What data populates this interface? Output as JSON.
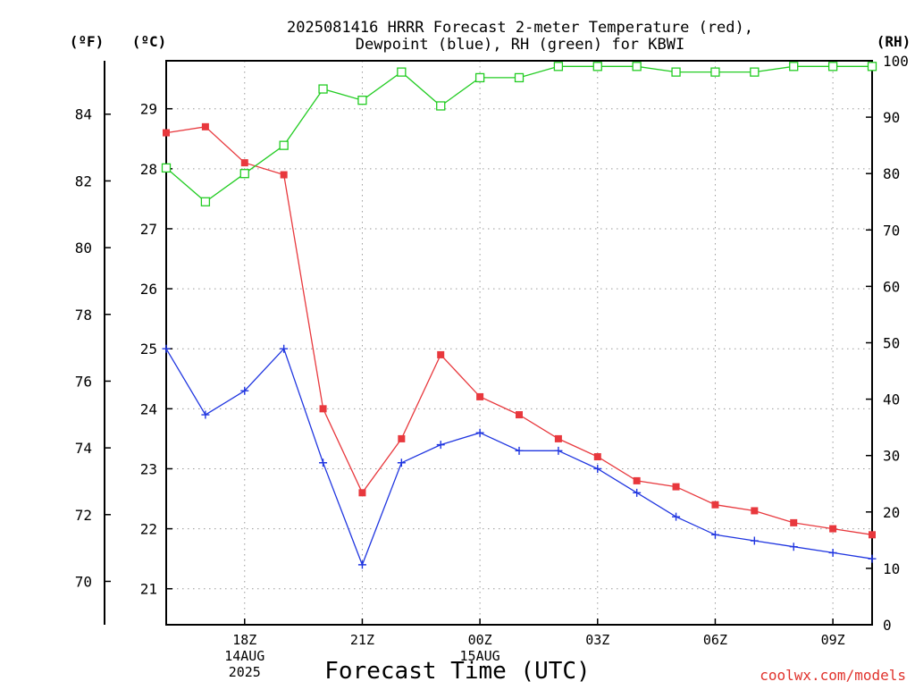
{
  "chart_data": {
    "type": "line",
    "title_lines": [
      "2025081416 HRRR Forecast 2-meter Temperature (red),",
      "Dewpoint (blue), RH (green) for KBWI"
    ],
    "xlabel": "Forecast Time (UTC)",
    "credit": "coolwx.com/models",
    "axis_units": {
      "fahrenheit": "(ºF)",
      "celsius": "(ºC)",
      "rh": "(RH)"
    },
    "x_hours": [
      16,
      17,
      18,
      19,
      20,
      21,
      22,
      23,
      24,
      25,
      26,
      27,
      28,
      29,
      30,
      31,
      32,
      33,
      34
    ],
    "xlim": [
      16,
      34
    ],
    "x_ticks": [
      {
        "hour": 18,
        "lines": [
          "18Z",
          "14AUG",
          "2025"
        ]
      },
      {
        "hour": 21,
        "lines": [
          "21Z"
        ]
      },
      {
        "hour": 24,
        "lines": [
          "00Z",
          "15AUG"
        ]
      },
      {
        "hour": 27,
        "lines": [
          "03Z"
        ]
      },
      {
        "hour": 30,
        "lines": [
          "06Z"
        ]
      },
      {
        "hour": 33,
        "lines": [
          "09Z"
        ]
      }
    ],
    "ylim_celsius": [
      20.4,
      29.8
    ],
    "y_ticks_celsius": [
      21,
      22,
      23,
      24,
      25,
      26,
      27,
      28,
      29
    ],
    "ylim_fahrenheit": [
      68.7,
      85.6
    ],
    "y_ticks_fahrenheit": [
      70,
      72,
      74,
      76,
      78,
      80,
      82,
      84
    ],
    "ylim_rh": [
      0,
      100
    ],
    "y_ticks_rh": [
      0,
      10,
      20,
      30,
      40,
      50,
      60,
      70,
      80,
      90,
      100
    ],
    "grid": true,
    "series": [
      {
        "key": "temperature",
        "axis": "celsius",
        "color": "#e8383d",
        "marker": "filled-square",
        "values": [
          28.6,
          28.7,
          28.1,
          27.9,
          24.0,
          22.6,
          23.5,
          24.9,
          24.2,
          23.9,
          23.5,
          23.2,
          22.8,
          22.7,
          22.4,
          22.3,
          22.1,
          22.0,
          21.9
        ]
      },
      {
        "key": "dewpoint",
        "axis": "celsius",
        "color": "#2036e0",
        "marker": "plus",
        "values": [
          25.0,
          23.9,
          24.3,
          25.0,
          23.1,
          21.4,
          23.1,
          23.4,
          23.6,
          23.3,
          23.3,
          23.0,
          22.6,
          22.2,
          21.9,
          21.8,
          21.7,
          21.6,
          21.5
        ]
      },
      {
        "key": "rh",
        "axis": "rh",
        "color": "#22cc22",
        "marker": "open-square",
        "values": [
          81,
          75,
          80,
          85,
          95,
          93,
          98,
          92,
          97,
          97,
          99,
          99,
          99,
          98,
          98,
          98,
          99,
          99,
          99
        ]
      }
    ]
  }
}
